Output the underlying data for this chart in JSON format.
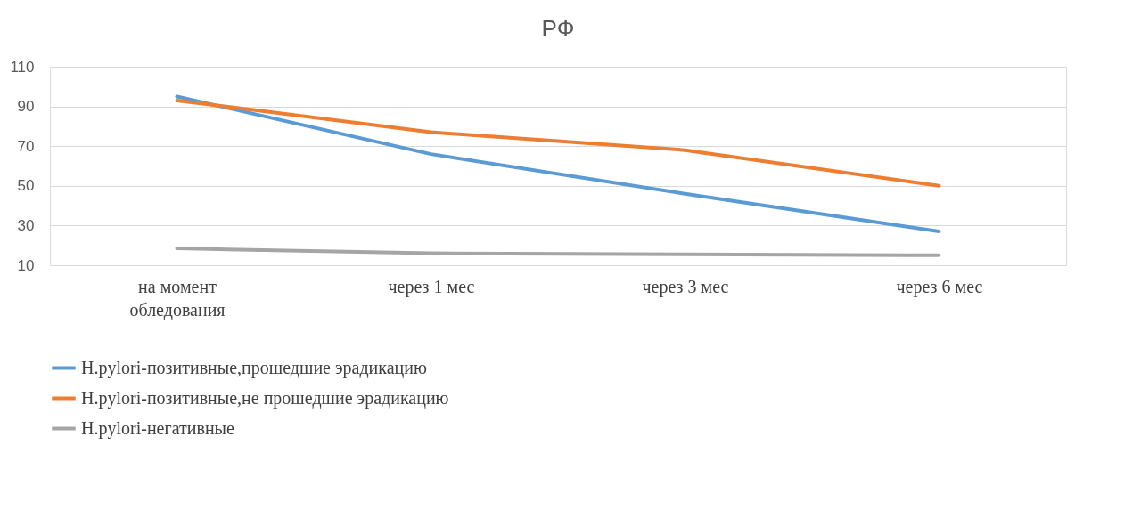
{
  "chart_data": {
    "type": "line",
    "title": "РФ",
    "categories": [
      "на момент обледования",
      "через 1 мес",
      "через 3 мес",
      "через 6 мес"
    ],
    "series": [
      {
        "name": "H.pylori-позитивные,прошедшие эрадикацию",
        "color": "#5b9bd5",
        "values": [
          95,
          66,
          46,
          27
        ]
      },
      {
        "name": "H.pylori-позитивные,не прошедшие эрадикацию",
        "color": "#ed7d31",
        "values": [
          93,
          77,
          68,
          50
        ]
      },
      {
        "name": "H.pylori-негативные",
        "color": "#a5a5a5",
        "values": [
          18.5,
          16,
          15.5,
          15
        ]
      }
    ],
    "ylim": [
      10,
      110
    ],
    "yticks": [
      10,
      30,
      50,
      70,
      90,
      110
    ],
    "grid": "y",
    "legend": "bottom",
    "marker": "none",
    "line_style": "solid"
  }
}
